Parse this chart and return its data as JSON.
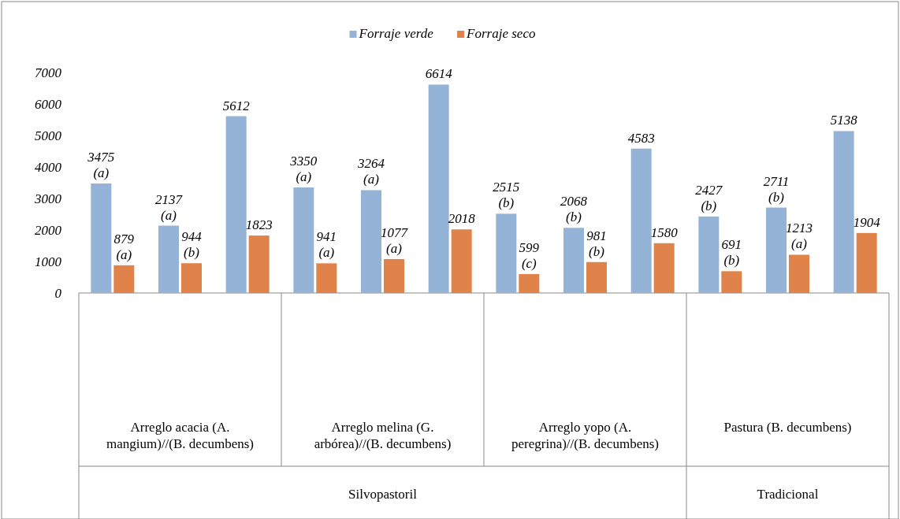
{
  "chart_data": {
    "type": "bar",
    "categories": [
      null,
      null,
      null,
      null,
      null,
      null,
      null,
      null,
      null,
      null,
      null,
      null
    ],
    "series": [
      {
        "name": "Forraje verde",
        "color": "#95b3d7",
        "values": [
          3475,
          2137,
          5612,
          3350,
          3264,
          6614,
          2515,
          2068,
          4583,
          2427,
          2711,
          5138
        ],
        "value_labels": [
          "3475 (a)",
          "2137 (a)",
          "5612",
          "3350 (a)",
          "3264 (a)",
          "6614",
          "2515 (b)",
          "2068 (b)",
          "4583",
          "2427 (b)",
          "2711 (b)",
          "5138"
        ]
      },
      {
        "name": "Forraje seco",
        "color": "#e0834a",
        "values": [
          879,
          944,
          1823,
          941,
          1077,
          2018,
          599,
          981,
          1580,
          691,
          1213,
          1904
        ],
        "value_labels": [
          "879 (a)",
          "944 (b)",
          "1823",
          "941 (a)",
          "1077 (a)",
          "2018",
          "599 (c)",
          "981 (b)",
          "1580",
          "691 (b)",
          "1213 (a)",
          "1904"
        ]
      }
    ],
    "ylim": [
      0,
      7000
    ],
    "yticks": [
      0,
      1000,
      2000,
      3000,
      4000,
      5000,
      6000,
      7000
    ],
    "legend": "top",
    "annotations": [
      "Arreglo acacia (A. mangium)//(B. decumbens)",
      "Arreglo melina (G. arbórea)//(B. decumbens)",
      "Arreglo yopo (A. peregrina)//(B. decumbens)",
      "Pastura (B. decumbens)",
      "Silvopastoril",
      "Tradicional"
    ]
  }
}
